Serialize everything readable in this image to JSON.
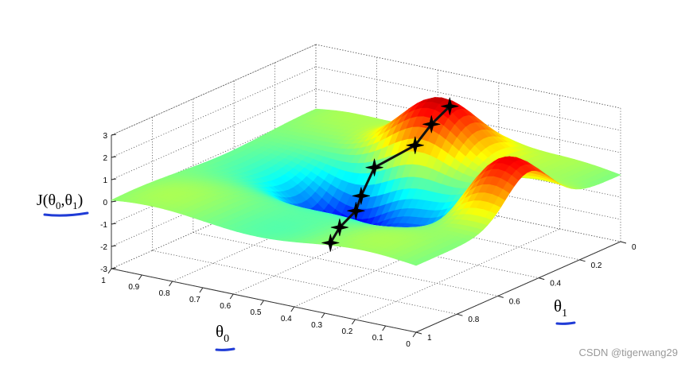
{
  "chart_data": {
    "type": "surface",
    "zlabel": "J(θ0,θ1)",
    "xlabel": "θ0",
    "ylabel": "θ1",
    "zlim": [
      -3,
      3
    ],
    "xlim": [
      1,
      0
    ],
    "ylim": [
      0,
      1
    ],
    "z_ticks": [
      "3",
      "2",
      "1",
      "0",
      "-1",
      "-2",
      "-3"
    ],
    "x_ticks": [
      "1",
      "0.9",
      "0.8",
      "0.7",
      "0.6",
      "0.5",
      "0.4",
      "0.3",
      "0.2",
      "0.1",
      "0"
    ],
    "y_ticks": [
      "0",
      "0.2",
      "0.4",
      "0.6",
      "0.8",
      "1"
    ],
    "grid": true,
    "colormap": "jet",
    "surface_bumps": [
      {
        "theta0": 0.5,
        "theta1": 0.15,
        "height": 2.8
      },
      {
        "theta0": 0.1,
        "theta1": 0.45,
        "height": 2.9
      },
      {
        "theta0": 0.3,
        "theta1": 0.5,
        "height": -2.0
      },
      {
        "theta0": 0.6,
        "theta1": 0.45,
        "height": -2.8
      }
    ],
    "descent_path": [
      {
        "theta0": 0.48,
        "theta1": 0.12,
        "J": 2.2
      },
      {
        "theta0": 0.52,
        "theta1": 0.15,
        "J": 1.4
      },
      {
        "theta0": 0.54,
        "theta1": 0.2,
        "J": 0.6
      },
      {
        "theta0": 0.62,
        "theta1": 0.28,
        "J": -0.3
      },
      {
        "theta0": 0.63,
        "theta1": 0.33,
        "J": -1.4
      },
      {
        "theta0": 0.6,
        "theta1": 0.4,
        "J": -1.7
      },
      {
        "theta0": 0.62,
        "theta1": 0.45,
        "J": -2.3
      },
      {
        "theta0": 0.63,
        "theta1": 0.48,
        "J": -2.9
      }
    ],
    "path_color": "#111111"
  },
  "annotation": {
    "underline_color": "#1f3bd6"
  },
  "watermark": "CSDN @tigerwang29"
}
